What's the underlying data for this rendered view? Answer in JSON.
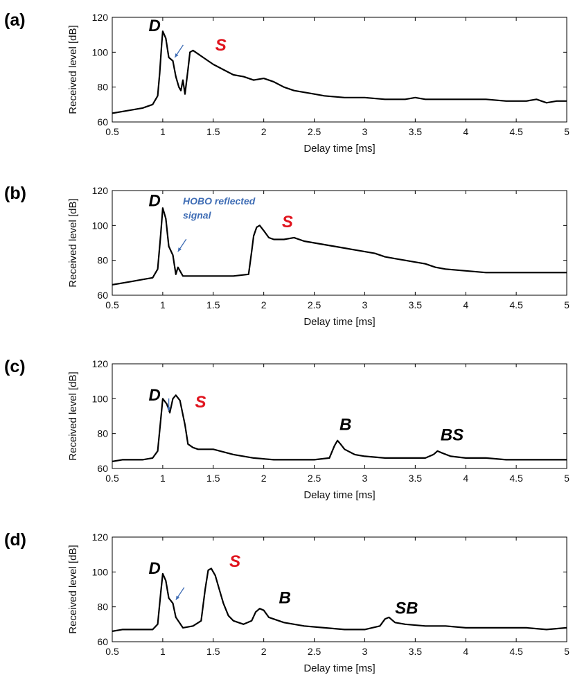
{
  "figure": {
    "title": ""
  },
  "colors": {
    "trace": "#000000",
    "red_label": "#e0141e",
    "blue_arrow": "#3f6db5",
    "axis": "#000000",
    "background": "#ffffff"
  },
  "chart_data": [
    {
      "type": "line",
      "panel": "(a)",
      "xlabel": "Delay time [ms]",
      "ylabel": "Received level [dB]",
      "xlim": [
        0.5,
        5
      ],
      "ylim": [
        60,
        120
      ],
      "xticks": [
        "0.5",
        "1",
        "1.5",
        "2",
        "2.5",
        "3",
        "3.5",
        "4",
        "4.5",
        "5"
      ],
      "yticks": [
        "60",
        "80",
        "100",
        "120"
      ],
      "grid": false,
      "series": [
        {
          "name": "",
          "x": [
            0.5,
            0.6,
            0.7,
            0.8,
            0.9,
            0.95,
            0.97,
            0.99,
            1.0,
            1.03,
            1.06,
            1.1,
            1.13,
            1.16,
            1.18,
            1.2,
            1.22,
            1.25,
            1.27,
            1.3,
            1.35,
            1.4,
            1.5,
            1.6,
            1.7,
            1.8,
            1.9,
            2.0,
            2.1,
            2.2,
            2.3,
            2.4,
            2.5,
            2.6,
            2.8,
            3.0,
            3.2,
            3.4,
            3.5,
            3.6,
            3.8,
            4.0,
            4.2,
            4.4,
            4.6,
            4.7,
            4.8,
            4.9,
            5.0
          ],
          "y": [
            65,
            66,
            67,
            68,
            70,
            75,
            88,
            105,
            112,
            108,
            97,
            95,
            86,
            80,
            78,
            84,
            76,
            90,
            100,
            101,
            99,
            97,
            93,
            90,
            87,
            86,
            84,
            85,
            83,
            80,
            78,
            77,
            76,
            75,
            74,
            74,
            73,
            73,
            74,
            73,
            73,
            73,
            73,
            72,
            72,
            73,
            71,
            72,
            72
          ]
        }
      ],
      "annotations": [
        {
          "text": "D",
          "color": "#000000",
          "x": 0.86,
          "y": 112
        },
        {
          "text": "S",
          "color": "#e0141e",
          "x": 1.52,
          "y": 101
        }
      ],
      "arrows": [
        {
          "x": 1.12,
          "y": 97
        }
      ]
    },
    {
      "type": "line",
      "panel": "(b)",
      "xlabel": "Delay time [ms]",
      "ylabel": "Received level [dB]",
      "xlim": [
        0.5,
        5
      ],
      "ylim": [
        60,
        120
      ],
      "xticks": [
        "0.5",
        "1",
        "1.5",
        "2",
        "2.5",
        "3",
        "3.5",
        "4",
        "4.5",
        "5"
      ],
      "yticks": [
        "60",
        "80",
        "100",
        "120"
      ],
      "grid": false,
      "series": [
        {
          "name": "",
          "x": [
            0.5,
            0.6,
            0.7,
            0.8,
            0.9,
            0.95,
            0.98,
            1.0,
            1.03,
            1.06,
            1.1,
            1.13,
            1.15,
            1.2,
            1.3,
            1.5,
            1.7,
            1.85,
            1.88,
            1.9,
            1.93,
            1.96,
            2.0,
            2.05,
            2.1,
            2.2,
            2.3,
            2.4,
            2.5,
            2.6,
            2.7,
            2.8,
            2.9,
            3.0,
            3.1,
            3.2,
            3.3,
            3.4,
            3.5,
            3.6,
            3.7,
            3.8,
            4.0,
            4.2,
            4.4,
            4.6,
            4.8,
            5.0
          ],
          "y": [
            66,
            67,
            68,
            69,
            70,
            75,
            95,
            110,
            104,
            88,
            83,
            72,
            76,
            71,
            71,
            71,
            71,
            72,
            85,
            94,
            99,
            100,
            97,
            93,
            92,
            92,
            93,
            91,
            90,
            89,
            88,
            87,
            86,
            85,
            84,
            82,
            81,
            80,
            79,
            78,
            76,
            75,
            74,
            73,
            73,
            73,
            73,
            73
          ]
        }
      ],
      "annotations": [
        {
          "text": "D",
          "color": "#000000",
          "x": 0.86,
          "y": 111
        },
        {
          "text": "S",
          "color": "#e0141e",
          "x": 2.18,
          "y": 99
        },
        {
          "text": "HOBO reflected",
          "color": "#3f6db5",
          "x": 1.2,
          "y": 112,
          "small": true
        },
        {
          "text": "signal",
          "color": "#3f6db5",
          "x": 1.2,
          "y": 104,
          "small": true
        }
      ],
      "arrows": [
        {
          "x": 1.15,
          "y": 85
        }
      ]
    },
    {
      "type": "line",
      "panel": "(c)",
      "xlabel": "Delay time [ms]",
      "ylabel": "Received level [dB]",
      "xlim": [
        0.5,
        5
      ],
      "ylim": [
        60,
        120
      ],
      "xticks": [
        "0.5",
        "1",
        "1.5",
        "2",
        "2.5",
        "3",
        "3.5",
        "4",
        "4.5",
        "5"
      ],
      "yticks": [
        "60",
        "80",
        "100",
        "120"
      ],
      "grid": false,
      "series": [
        {
          "name": "",
          "x": [
            0.5,
            0.6,
            0.7,
            0.8,
            0.9,
            0.95,
            0.98,
            1.0,
            1.04,
            1.07,
            1.1,
            1.13,
            1.17,
            1.22,
            1.25,
            1.3,
            1.35,
            1.5,
            1.7,
            1.9,
            2.1,
            2.3,
            2.5,
            2.65,
            2.7,
            2.73,
            2.76,
            2.8,
            2.9,
            3.0,
            3.2,
            3.4,
            3.6,
            3.68,
            3.72,
            3.76,
            3.85,
            4.0,
            4.2,
            4.4,
            4.6,
            4.8,
            5.0
          ],
          "y": [
            64,
            65,
            65,
            65,
            66,
            70,
            88,
            100,
            97,
            92,
            100,
            102,
            99,
            85,
            74,
            72,
            71,
            71,
            68,
            66,
            65,
            65,
            65,
            66,
            73,
            76,
            74,
            71,
            68,
            67,
            66,
            66,
            66,
            68,
            70,
            69,
            67,
            66,
            66,
            65,
            65,
            65,
            65
          ]
        }
      ],
      "annotations": [
        {
          "text": "D",
          "color": "#000000",
          "x": 0.86,
          "y": 99
        },
        {
          "text": "S",
          "color": "#e0141e",
          "x": 1.32,
          "y": 95
        },
        {
          "text": "B",
          "color": "#000000",
          "x": 2.75,
          "y": 82
        },
        {
          "text": "BS",
          "color": "#000000",
          "x": 3.75,
          "y": 76
        }
      ],
      "arrows": [
        {
          "x": 1.06,
          "y": 93,
          "vertical": true
        }
      ]
    },
    {
      "type": "line",
      "panel": "(d)",
      "xlabel": "Delay time [ms]",
      "ylabel": "Received level [dB]",
      "xlim": [
        0.5,
        5
      ],
      "ylim": [
        60,
        120
      ],
      "xticks": [
        "0.5",
        "1",
        "1.5",
        "2",
        "2.5",
        "3",
        "3.5",
        "4",
        "4.5",
        "5"
      ],
      "yticks": [
        "60",
        "80",
        "100",
        "120"
      ],
      "grid": false,
      "series": [
        {
          "name": "",
          "x": [
            0.5,
            0.6,
            0.7,
            0.8,
            0.9,
            0.95,
            0.98,
            1.0,
            1.03,
            1.06,
            1.1,
            1.13,
            1.2,
            1.3,
            1.38,
            1.42,
            1.45,
            1.48,
            1.52,
            1.56,
            1.6,
            1.65,
            1.7,
            1.8,
            1.88,
            1.92,
            1.96,
            2.0,
            2.05,
            2.1,
            2.2,
            2.4,
            2.6,
            2.8,
            3.0,
            3.15,
            3.2,
            3.24,
            3.3,
            3.4,
            3.6,
            3.8,
            4.0,
            4.2,
            4.4,
            4.6,
            4.8,
            5.0
          ],
          "y": [
            66,
            67,
            67,
            67,
            67,
            70,
            88,
            99,
            95,
            85,
            82,
            74,
            68,
            69,
            72,
            90,
            101,
            102,
            98,
            90,
            82,
            75,
            72,
            70,
            72,
            77,
            79,
            78,
            74,
            73,
            71,
            69,
            68,
            67,
            67,
            69,
            73,
            74,
            71,
            70,
            69,
            69,
            68,
            68,
            68,
            68,
            67,
            68
          ]
        }
      ],
      "annotations": [
        {
          "text": "D",
          "color": "#000000",
          "x": 0.86,
          "y": 99
        },
        {
          "text": "S",
          "color": "#e0141e",
          "x": 1.66,
          "y": 103
        },
        {
          "text": "B",
          "color": "#000000",
          "x": 2.15,
          "y": 82
        },
        {
          "text": "SB",
          "color": "#000000",
          "x": 3.3,
          "y": 76
        }
      ],
      "arrows": [
        {
          "x": 1.13,
          "y": 84
        }
      ]
    }
  ]
}
